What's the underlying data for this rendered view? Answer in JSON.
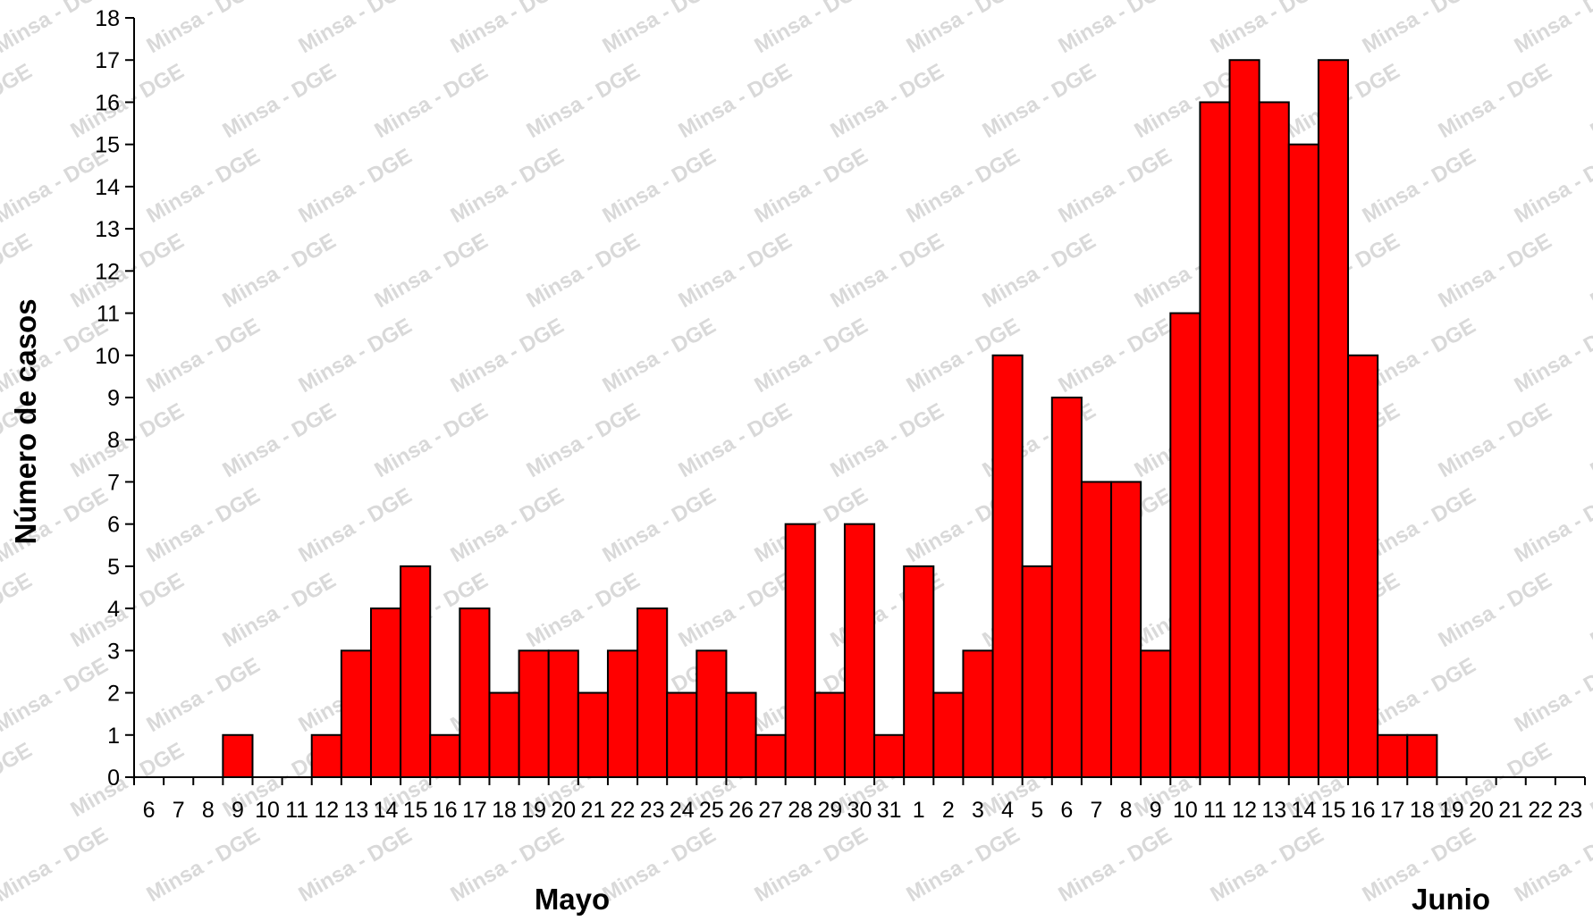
{
  "chart_data": {
    "type": "bar",
    "ylabel": "Número de casos",
    "xlabel": "",
    "ylim": [
      0,
      18
    ],
    "ytick_step": 1,
    "grid": false,
    "legend": "none",
    "colors": {
      "bar": "#ff0000",
      "bar_stroke": "#000000",
      "axis": "#000000"
    },
    "watermark": "Minsa - DGE",
    "groups": [
      {
        "label": "Mayo",
        "span": [
          0,
          25
        ]
      },
      {
        "label": "Junio",
        "span": [
          26,
          48
        ]
      }
    ],
    "categories": [
      "6",
      "7",
      "8",
      "9",
      "10",
      "11",
      "12",
      "13",
      "14",
      "15",
      "16",
      "17",
      "18",
      "19",
      "20",
      "21",
      "22",
      "23",
      "24",
      "25",
      "26",
      "27",
      "28",
      "29",
      "30",
      "31",
      "1",
      "2",
      "3",
      "4",
      "5",
      "6",
      "7",
      "8",
      "9",
      "10",
      "11",
      "12",
      "13",
      "14",
      "15",
      "16",
      "17",
      "18",
      "19",
      "20",
      "21",
      "22",
      "23"
    ],
    "values": [
      0,
      0,
      0,
      1,
      0,
      0,
      1,
      3,
      4,
      5,
      1,
      4,
      2,
      3,
      3,
      2,
      3,
      4,
      2,
      3,
      2,
      1,
      6,
      2,
      6,
      1,
      5,
      2,
      3,
      10,
      5,
      9,
      7,
      7,
      3,
      11,
      16,
      17,
      16,
      15,
      17,
      10,
      1,
      1,
      0,
      0,
      0,
      0,
      0
    ]
  }
}
